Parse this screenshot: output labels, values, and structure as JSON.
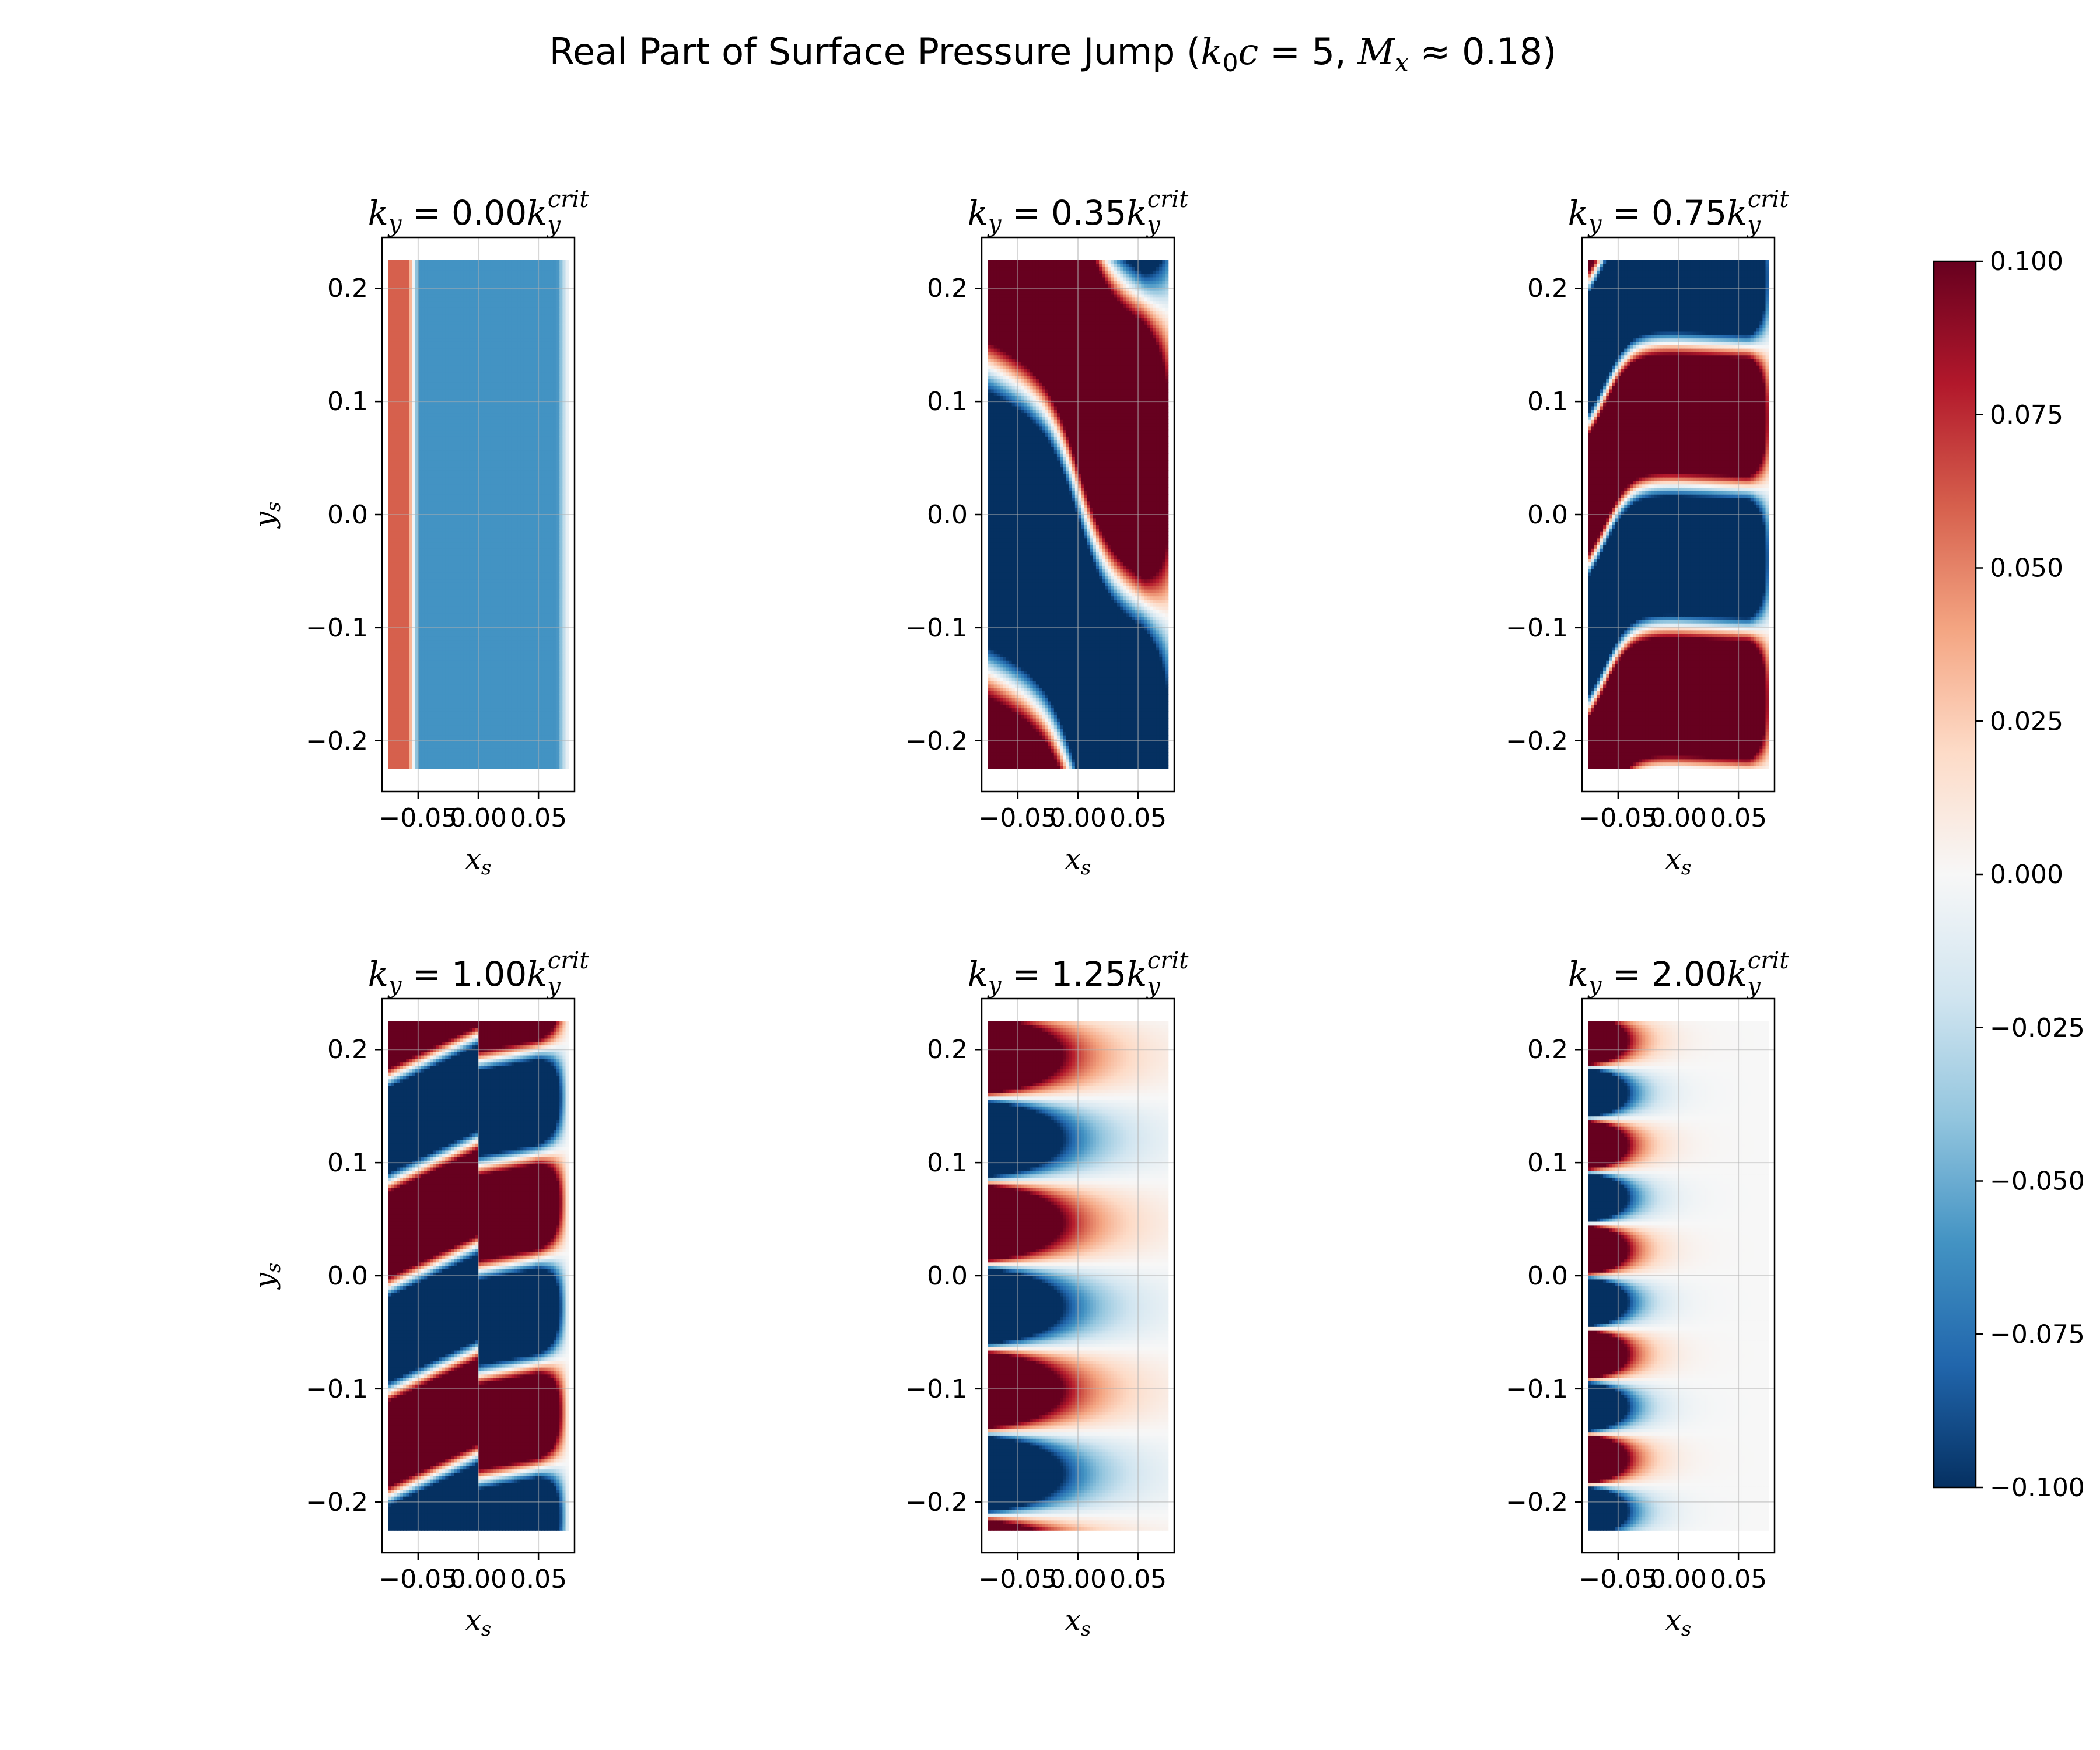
{
  "figure": {
    "title_prefix": "Real Part of Surface Pressure Jump (",
    "title_k": "k",
    "title_k_sub": "0",
    "title_c": "c",
    "title_eq": " = 5, ",
    "title_M": "M",
    "title_M_sub": "x",
    "title_approx": " ≈ 0.18)"
  },
  "colors": {
    "colormap": "RdBu_r",
    "dark_red": "#67001f",
    "dark_blue": "#053061",
    "white": "#f7f7f7"
  },
  "chart_data": {
    "type": "heatmap",
    "grid": true,
    "xlabel_var": "x",
    "xlabel_sub": "s",
    "ylabel_var": "y",
    "ylabel_sub": "s",
    "xlim": [
      -0.08,
      0.08
    ],
    "ylim": [
      -0.245,
      0.245
    ],
    "data_extent": {
      "x": [
        -0.075,
        0.075
      ],
      "y": [
        -0.225,
        0.225
      ]
    },
    "x_ticks": [
      -0.05,
      0.0,
      0.05
    ],
    "x_tick_labels": [
      "−0.05",
      "0.00",
      "0.05"
    ],
    "y_ticks": [
      0.2,
      0.1,
      0.0,
      -0.1,
      -0.2
    ],
    "y_tick_labels": [
      "0.2",
      "0.1",
      "0.0",
      "−0.1",
      "−0.2"
    ],
    "colorbar": {
      "vmin": -0.1,
      "vmax": 0.1,
      "ticks": [
        0.1,
        0.075,
        0.05,
        0.025,
        0.0,
        -0.025,
        -0.05,
        -0.075,
        -0.1
      ],
      "tick_labels": [
        "0.100",
        "0.075",
        "0.050",
        "0.025",
        "0.000",
        "−0.025",
        "−0.050",
        "−0.075",
        "−0.100"
      ]
    },
    "panels": [
      {
        "title_k": "k",
        "title_sub": "y",
        "title_eq": " = 0.00",
        "title_k2": "k",
        "title_sub2": "y",
        "title_sup2": "crit",
        "ky_ratio": 0.0,
        "regime": "uniform_jump"
      },
      {
        "title_k": "k",
        "title_sub": "y",
        "title_eq": " = 0.35",
        "title_k2": "k",
        "title_sub2": "y",
        "title_sup2": "crit",
        "ky_ratio": 0.35,
        "regime": "supercritical_oblique"
      },
      {
        "title_k": "k",
        "title_sub": "y",
        "title_eq": " = 0.75",
        "title_k2": "k",
        "title_sub2": "y",
        "title_sup2": "crit",
        "ky_ratio": 0.75,
        "regime": "supercritical_banded"
      },
      {
        "title_k": "k",
        "title_sub": "y",
        "title_eq": " = 1.00",
        "title_k2": "k",
        "title_sub2": "y",
        "title_sup2": "crit",
        "ky_ratio": 1.0,
        "regime": "critical"
      },
      {
        "title_k": "k",
        "title_sub": "y",
        "title_eq": " = 1.25",
        "title_k2": "k",
        "title_sub2": "y",
        "title_sup2": "crit",
        "ky_ratio": 1.25,
        "regime": "subcritical_decay"
      },
      {
        "title_k": "k",
        "title_sub": "y",
        "title_eq": " = 2.00",
        "title_k2": "k",
        "title_sub2": "y",
        "title_sup2": "crit",
        "ky_ratio": 2.0,
        "regime": "subcritical_strong_decay"
      }
    ]
  }
}
